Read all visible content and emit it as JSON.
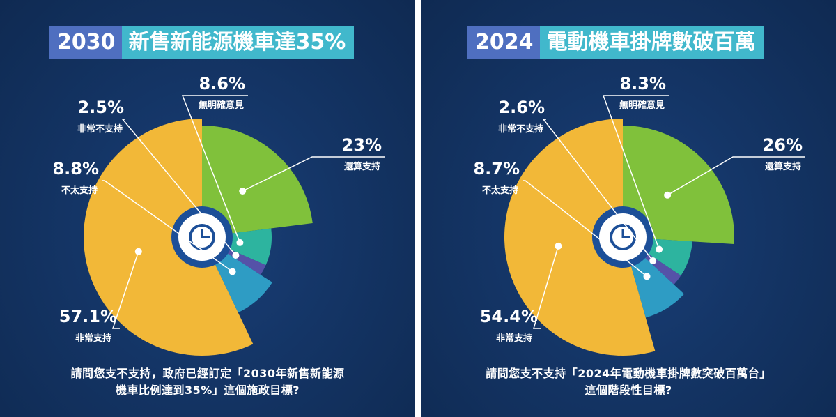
{
  "colors": {
    "panel_bg": "#143566",
    "title_year_bg": "#4f6fc0",
    "title_text_bg": "#41b8cc",
    "still_support": "#80c13b",
    "no_opinion": "#2db49f",
    "strongly_oppose": "#5552a8",
    "not_really_support": "#2e9cc4",
    "strongly_support": "#f2b838",
    "center_ring": "#1c4f98"
  },
  "charts": [
    {
      "title_year": "2030",
      "title_text": "新售新能源機車達35%",
      "question_line1": "請問您支不支持，政府已經訂定「2030年新售新能源",
      "question_line2": "機車比例達到35%」這個施政目標?",
      "labels": [
        {
          "pct": "23%",
          "name": "還算支持"
        },
        {
          "pct": "8.6%",
          "name": "無明確意見"
        },
        {
          "pct": "2.5%",
          "name": "非常不支持"
        },
        {
          "pct": "8.8%",
          "name": "不太支持"
        },
        {
          "pct": "57.1%",
          "name": "非常支持"
        }
      ]
    },
    {
      "title_year": "2024",
      "title_text": "電動機車掛牌數破百萬",
      "question_line1": "請問您支不支持「2024年電動機車掛牌數突破百萬台」",
      "question_line2": "這個階段性目標?",
      "labels": [
        {
          "pct": "26%",
          "name": "還算支持"
        },
        {
          "pct": "8.3%",
          "name": "無明確意見"
        },
        {
          "pct": "2.6%",
          "name": "非常不支持"
        },
        {
          "pct": "8.7%",
          "name": "不太支持"
        },
        {
          "pct": "54.4%",
          "name": "非常支持"
        }
      ]
    }
  ],
  "chart_data": [
    {
      "type": "pie",
      "title": "2030 新售新能源機車達35%",
      "categories": [
        "還算支持",
        "無明確意見",
        "非常不支持",
        "不太支持",
        "非常支持"
      ],
      "values": [
        23,
        8.6,
        2.5,
        8.8,
        57.1
      ],
      "unit": "%"
    },
    {
      "type": "pie",
      "title": "2024 電動機車掛牌數破百萬",
      "categories": [
        "還算支持",
        "無明確意見",
        "非常不支持",
        "不太支持",
        "非常支持"
      ],
      "values": [
        26,
        8.3,
        2.6,
        8.7,
        54.4
      ],
      "unit": "%"
    }
  ]
}
